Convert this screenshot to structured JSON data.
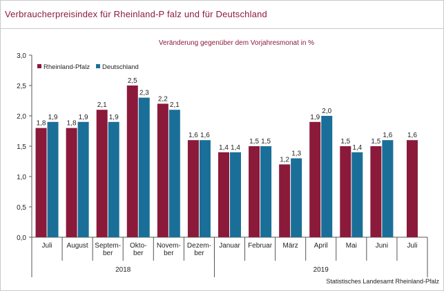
{
  "title": "Verbraucherpreisindex für Rheinland-P falz und für Deutschland",
  "source": "Statistisches Landesamt Rheinland-Pfalz",
  "chart_data": {
    "type": "bar",
    "subtitle": "Veränderung gegenüber dem Vorjahresmonat in %",
    "categories": [
      [
        "Juli"
      ],
      [
        "August"
      ],
      [
        "Septem-",
        "ber"
      ],
      [
        "Okto-",
        "ber"
      ],
      [
        "Novem-",
        "ber"
      ],
      [
        "Dezem-",
        "ber"
      ],
      [
        "Januar"
      ],
      [
        "Februar"
      ],
      [
        "März"
      ],
      [
        "April"
      ],
      [
        "Mai"
      ],
      [
        "Juni"
      ],
      [
        "Juli"
      ]
    ],
    "groups": [
      {
        "label": "2018",
        "span": 6
      },
      {
        "label": "2019",
        "span": 7
      }
    ],
    "series": [
      {
        "name": "Rheinland-Pfalz",
        "color": "#8b1a3a",
        "values": [
          1.8,
          1.8,
          2.1,
          2.5,
          2.2,
          1.6,
          1.4,
          1.5,
          1.2,
          1.9,
          1.5,
          1.5,
          1.6
        ],
        "labels": [
          "1,8",
          "1,8",
          "2,1",
          "2,5",
          "2,2",
          "1,6",
          "1,4",
          "1,5",
          "1,2",
          "1,9",
          "1,5",
          "1,5",
          "1,6"
        ]
      },
      {
        "name": "Deutschland",
        "color": "#1a6f98",
        "values": [
          1.9,
          1.9,
          1.9,
          2.3,
          2.1,
          1.6,
          1.4,
          1.5,
          1.3,
          2.0,
          1.4,
          1.6,
          null
        ],
        "labels": [
          "1,9",
          "1,9",
          "1,9",
          "2,3",
          "2,1",
          "1,6",
          "1,4",
          "1,5",
          "1,3",
          "2,0",
          "1,4",
          "1,6",
          ""
        ]
      }
    ],
    "yticks": [
      "0,0",
      "0,5",
      "1,0",
      "1,5",
      "2,0",
      "2,5",
      "3,0"
    ],
    "ylim": [
      0,
      3
    ],
    "legend": "top-left",
    "grid": false
  }
}
